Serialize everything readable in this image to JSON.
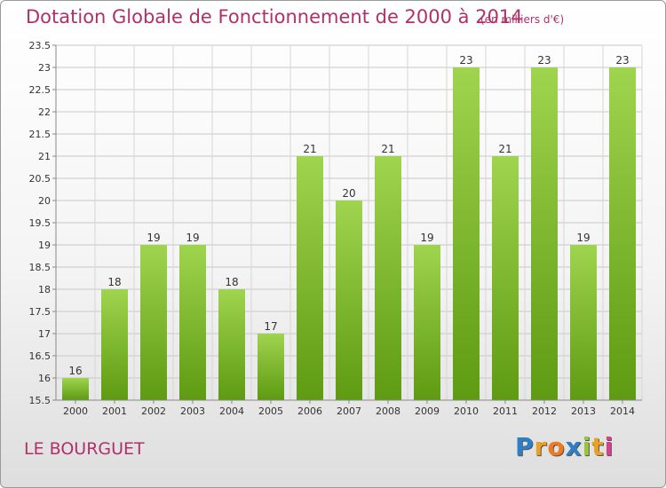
{
  "title": "Dotation Globale de Fonctionnement de 2000 à 2014",
  "subtitle": "(en milliers d'€)",
  "commune": "LE BOURGUET",
  "logo": {
    "letters": [
      "P",
      "r",
      "o",
      "x",
      "i",
      "t",
      "i"
    ],
    "colors": [
      "#2e7fc4",
      "#e8a125",
      "#f07a1f",
      "#2e7fc4",
      "#9ac43c",
      "#e8a125",
      "#d9408a"
    ]
  },
  "chart_data": {
    "type": "bar",
    "categories": [
      "2000",
      "2001",
      "2002",
      "2003",
      "2004",
      "2005",
      "2006",
      "2007",
      "2008",
      "2009",
      "2010",
      "2011",
      "2012",
      "2013",
      "2014"
    ],
    "values": [
      16,
      18,
      19,
      19,
      18,
      17,
      21,
      20,
      21,
      19,
      23,
      21,
      23,
      19,
      23
    ],
    "data_labels": [
      "16",
      "18",
      "19",
      "19",
      "18",
      "17",
      "21",
      "20",
      "21",
      "19",
      "23",
      "21",
      "23",
      "19",
      "23"
    ],
    "ylim": [
      15.5,
      23.5
    ],
    "yticks": [
      "15.5",
      "16",
      "16.5",
      "17",
      "17.5",
      "18",
      "18.5",
      "19",
      "19.5",
      "20",
      "20.5",
      "21",
      "21.5",
      "22",
      "22.5",
      "23",
      "23.5"
    ],
    "grid": true,
    "bar_color": "#7fbf2a"
  }
}
